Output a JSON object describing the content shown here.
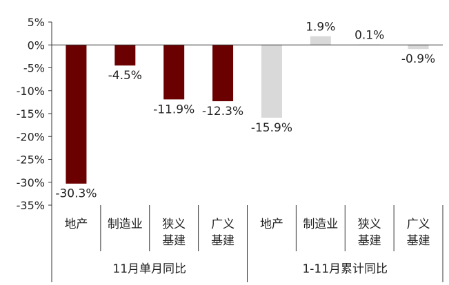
{
  "chart_data": {
    "type": "bar",
    "title": "",
    "xlabel": "",
    "ylabel": "",
    "ylim": [
      -35,
      5
    ],
    "yticks": [
      5,
      0,
      -5,
      -10,
      -15,
      -20,
      -25,
      -30,
      -35
    ],
    "ytick_labels": [
      "5%",
      "0%",
      "-5%",
      "-10%",
      "-15%",
      "-20%",
      "-25%",
      "-30%",
      "-35%"
    ],
    "grid": false,
    "groups": [
      {
        "label": "11月单月同比",
        "color": "#6b0000",
        "categories": [
          [
            "地产"
          ],
          [
            "制造业"
          ],
          [
            "狭义",
            "基建"
          ],
          [
            "广义",
            "基建"
          ]
        ],
        "values": [
          -30.3,
          -4.5,
          -11.9,
          -12.3
        ],
        "labels": [
          "-30.3%",
          "-4.5%",
          "-11.9%",
          "-12.3%"
        ]
      },
      {
        "label": "1-11月累计同比",
        "color": "#d9d9d9",
        "categories": [
          [
            "地产"
          ],
          [
            "制造业"
          ],
          [
            "狭义",
            "基建"
          ],
          [
            "广义",
            "基建"
          ]
        ],
        "values": [
          -15.9,
          1.9,
          0.1,
          -0.9
        ],
        "labels": [
          "-15.9%",
          "1.9%",
          "0.1%",
          "-0.9%"
        ]
      }
    ]
  }
}
